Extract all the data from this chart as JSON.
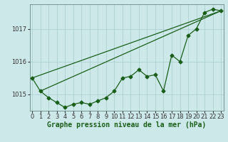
{
  "xlabel": "Graphe pression niveau de la mer (hPa)",
  "ylabel": "",
  "background_color": "#cde8e8",
  "grid_color": "#a8cccc",
  "line_color": "#1a5e1a",
  "hours": [
    0,
    1,
    2,
    3,
    4,
    5,
    6,
    7,
    8,
    9,
    10,
    11,
    12,
    13,
    14,
    15,
    16,
    17,
    18,
    19,
    20,
    21,
    22,
    23
  ],
  "pressure": [
    1015.5,
    1015.1,
    1014.9,
    1014.75,
    1014.6,
    1014.7,
    1014.75,
    1014.7,
    1014.8,
    1014.9,
    1015.1,
    1015.5,
    1015.55,
    1015.75,
    1015.55,
    1015.6,
    1015.1,
    1016.2,
    1016.0,
    1016.8,
    1017.0,
    1017.5,
    1017.6,
    1017.55
  ],
  "line2_x": [
    1,
    23
  ],
  "line2_y": [
    1015.1,
    1017.55
  ],
  "line3_x": [
    0,
    23
  ],
  "line3_y": [
    1015.5,
    1017.55
  ],
  "ylim": [
    1014.5,
    1017.75
  ],
  "yticks": [
    1015,
    1016,
    1017
  ],
  "xticks": [
    0,
    1,
    2,
    3,
    4,
    5,
    6,
    7,
    8,
    9,
    10,
    11,
    12,
    13,
    14,
    15,
    16,
    17,
    18,
    19,
    20,
    21,
    22,
    23
  ],
  "xlabel_fontsize": 7,
  "tick_fontsize": 6,
  "marker": "D",
  "markersize": 2.5,
  "linewidth": 0.9
}
